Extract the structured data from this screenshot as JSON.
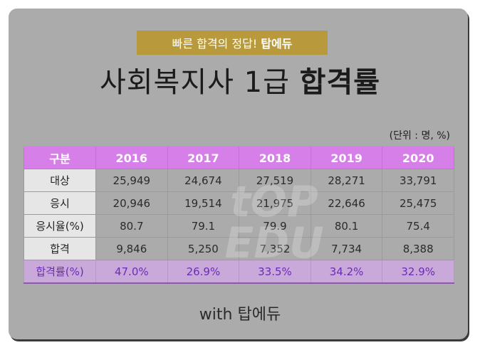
{
  "banner": {
    "text": "빠른 합격의 정답!",
    "brand": "탑에듀"
  },
  "title": {
    "main": "사회복지사 1급",
    "emph": "합격률"
  },
  "unit": "(단위 : 명, %)",
  "table": {
    "headers": [
      "구분",
      "2016",
      "2017",
      "2018",
      "2019",
      "2020"
    ],
    "rows": [
      {
        "label": "대상",
        "values": [
          "25,949",
          "24,674",
          "27,519",
          "28,271",
          "33,791"
        ]
      },
      {
        "label": "응시",
        "values": [
          "20,946",
          "19,514",
          "21,975",
          "22,646",
          "25,475"
        ]
      },
      {
        "label": "응시율(%)",
        "values": [
          "80.7",
          "79.1",
          "79.9",
          "80.1",
          "75.4"
        ]
      },
      {
        "label": "합격",
        "values": [
          "9,846",
          "5,250",
          "7,352",
          "7,734",
          "8,388"
        ]
      },
      {
        "label": "합격률(%)",
        "values": [
          "47.0%",
          "26.9%",
          "33.5%",
          "34.2%",
          "32.9%"
        ]
      }
    ]
  },
  "watermark": {
    "line1": "tOP",
    "line2": "EDU"
  },
  "footer": "with 탑에듀",
  "colors": {
    "header": "#d77fe9",
    "rate_row": "#c9a9d9",
    "rate_text": "#6a2bb6",
    "banner": "#b89a3c",
    "card": "#ababab"
  }
}
